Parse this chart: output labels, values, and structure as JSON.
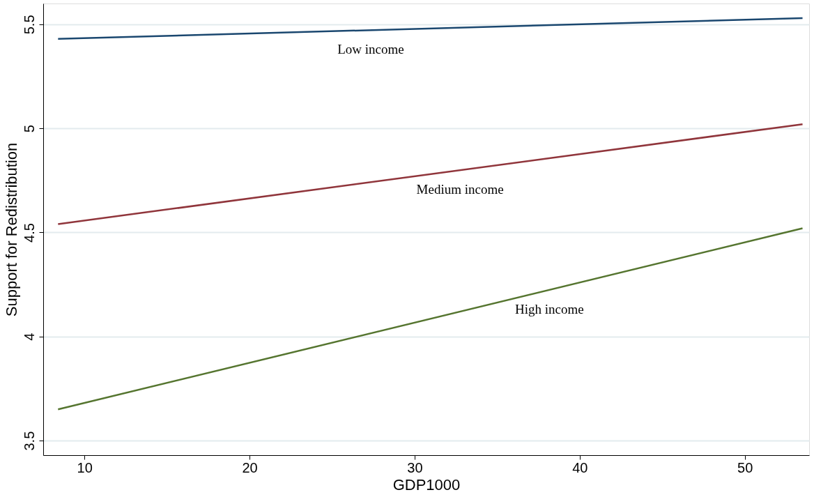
{
  "chart_data": {
    "type": "line",
    "xlabel": "GDP1000",
    "ylabel": "Support for Redistribution",
    "x": [
      8.4,
      53.5
    ],
    "series": [
      {
        "name": "Low income",
        "color": "#1a476f",
        "values": [
          5.43,
          5.53
        ]
      },
      {
        "name": "Medium income",
        "color": "#90353b",
        "values": [
          4.54,
          5.02
        ]
      },
      {
        "name": "High income",
        "color": "#55752f",
        "values": [
          3.65,
          4.52
        ]
      }
    ],
    "xlim": [
      7.5,
      53.9
    ],
    "xticks": [
      10,
      20,
      30,
      40,
      50
    ],
    "ylim": [
      3.43,
      5.6
    ],
    "yticks": [
      3.5,
      4,
      4.5,
      5,
      5.5
    ],
    "grid": "y",
    "legend": false,
    "marker": "none",
    "line_style": "solid"
  }
}
